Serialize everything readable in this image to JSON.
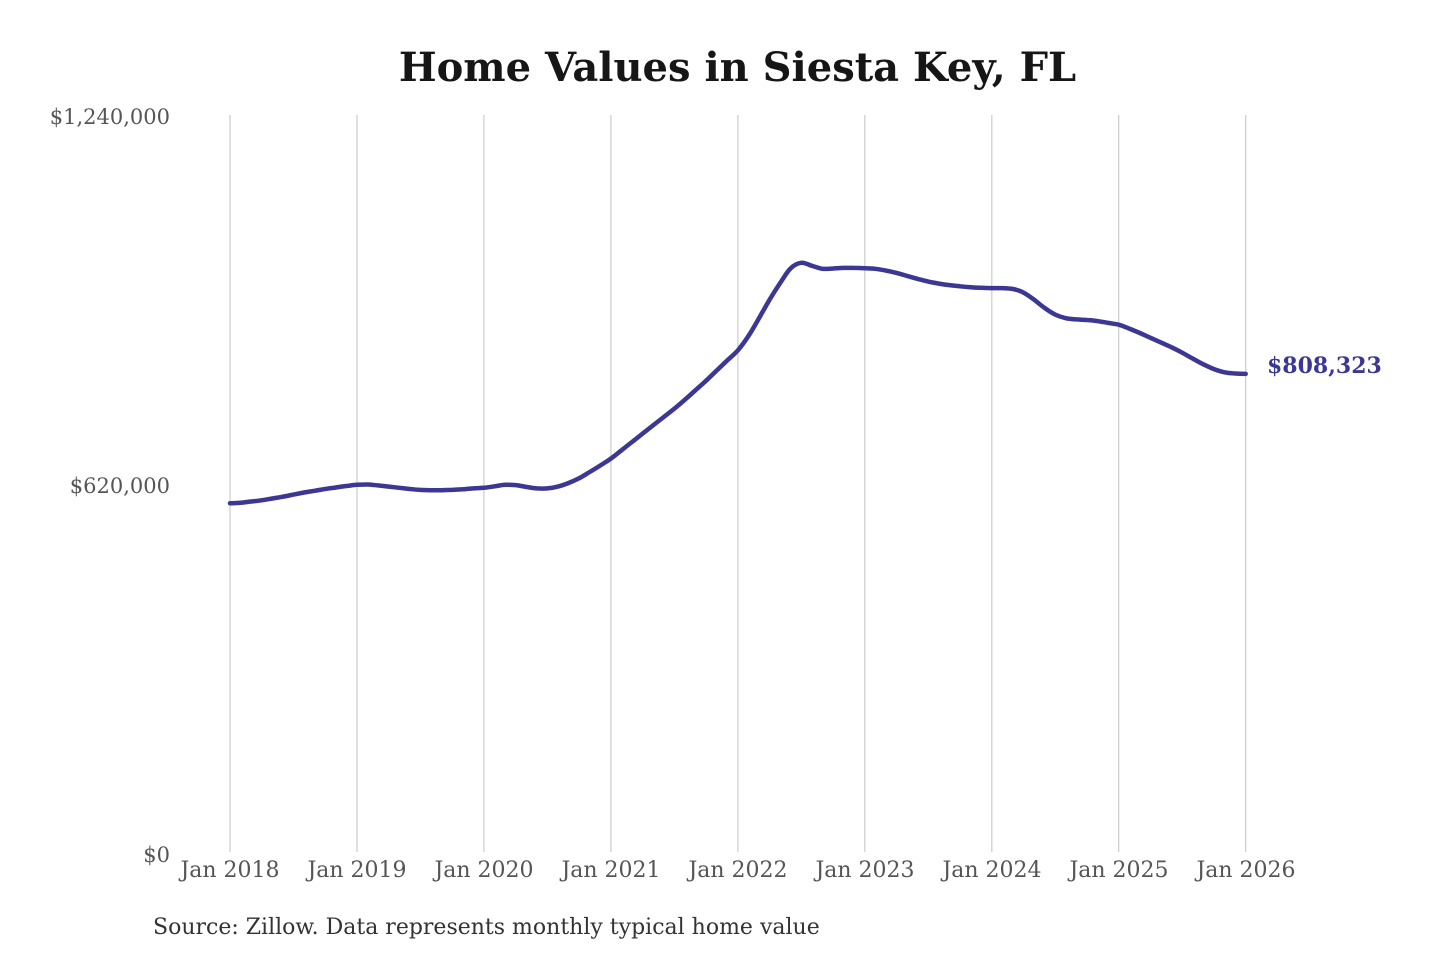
{
  "title": "Home Values in Siesta Key, FL",
  "source_note": "Source: Zillow. Data represents monthly typical home value",
  "colors": {
    "background": "#ffffff",
    "line": "#3b3793",
    "grid": "#cccccc",
    "axis_text": "#555555",
    "title_text": "#161616",
    "end_label_text": "#3b3793",
    "source_text": "#333333"
  },
  "chart_data": {
    "type": "line",
    "title": "Home Values in Siesta Key, FL",
    "xlabel": "",
    "ylabel": "",
    "ylim": [
      0,
      1240000
    ],
    "grid": "vertical-only",
    "legend": "none",
    "y_tick_values": [
      0,
      620000,
      1240000
    ],
    "y_tick_labels": [
      "$0",
      "$620,000",
      "$1,240,000"
    ],
    "x_tick_labels": [
      "Jan 2018",
      "Jan 2019",
      "Jan 2020",
      "Jan 2021",
      "Jan 2022",
      "Jan 2023",
      "Jan 2024",
      "Jan 2025",
      "Jan 2026"
    ],
    "last_value": 808323,
    "last_value_label": "$808,323",
    "series": [
      {
        "name": "Monthly typical home value",
        "start_month": "2018-01",
        "end_month": "2026-01",
        "interval": "monthly",
        "values": [
          591000,
          592000,
          594000,
          596000,
          599000,
          602000,
          605500,
          609000,
          612000,
          615000,
          617500,
          620000,
          622000,
          622500,
          621000,
          619000,
          617000,
          615000,
          613500,
          613000,
          613000,
          613500,
          614500,
          616000,
          617000,
          619500,
          622000,
          621500,
          618500,
          616000,
          616000,
          619000,
          625000,
          633000,
          643500,
          654500,
          666000,
          680000,
          694000,
          708000,
          722000,
          736000,
          750000,
          765000,
          781000,
          797000,
          814000,
          831000,
          848000,
          872000,
          902000,
          933000,
          961000,
          986000,
          995000,
          990000,
          985000,
          985500,
          986500,
          986500,
          986000,
          985000,
          982000,
          978000,
          973000,
          968000,
          963500,
          960000,
          957500,
          955500,
          954000,
          953000,
          952500,
          952500,
          951000,
          945000,
          933000,
          919000,
          908000,
          902000,
          900000,
          899000,
          897000,
          894000,
          891000,
          884500,
          877000,
          869000,
          861000,
          853000,
          844000,
          834000,
          824500,
          816500,
          811000,
          809000,
          808323
        ]
      }
    ]
  }
}
